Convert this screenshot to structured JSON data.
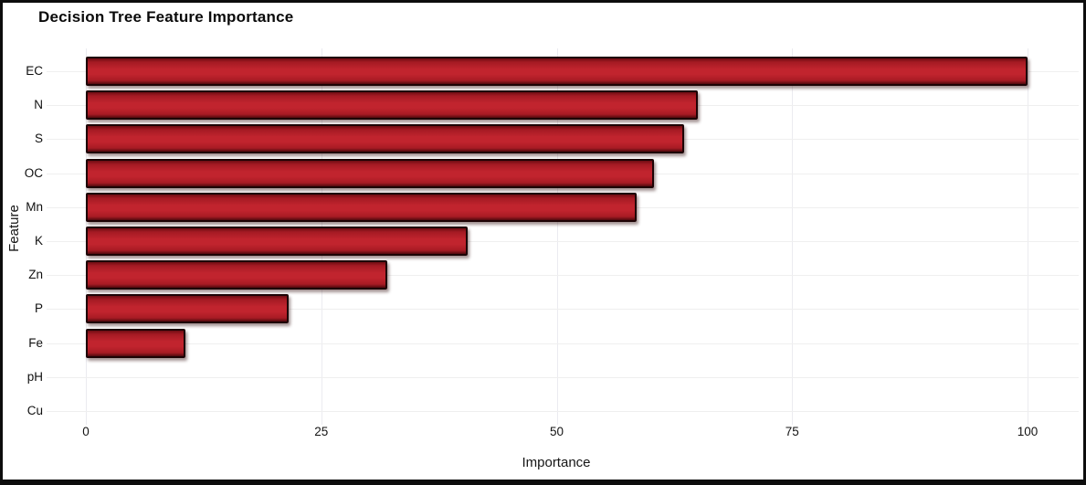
{
  "chart_data": {
    "type": "bar",
    "orientation": "horizontal",
    "title": "Decision Tree Feature Importance",
    "xlabel": "Importance",
    "ylabel": "Feature",
    "categories": [
      "EC",
      "N",
      "S",
      "OC",
      "Mn",
      "K",
      "Zn",
      "P",
      "Fe",
      "pH",
      "Cu"
    ],
    "values": [
      100,
      65,
      63.5,
      60.3,
      58.5,
      40.5,
      32,
      21.5,
      10.6,
      0,
      0
    ],
    "xticks": [
      0,
      25,
      50,
      75,
      100
    ],
    "xlim": [
      0,
      100
    ],
    "grid": true,
    "legend": "none",
    "bar_color": "#c1242e",
    "bar_border_color": "#1d0305",
    "gridline_color": "#ececec",
    "frame_color": "#0d0d0d",
    "background_color": "#ffffff"
  }
}
